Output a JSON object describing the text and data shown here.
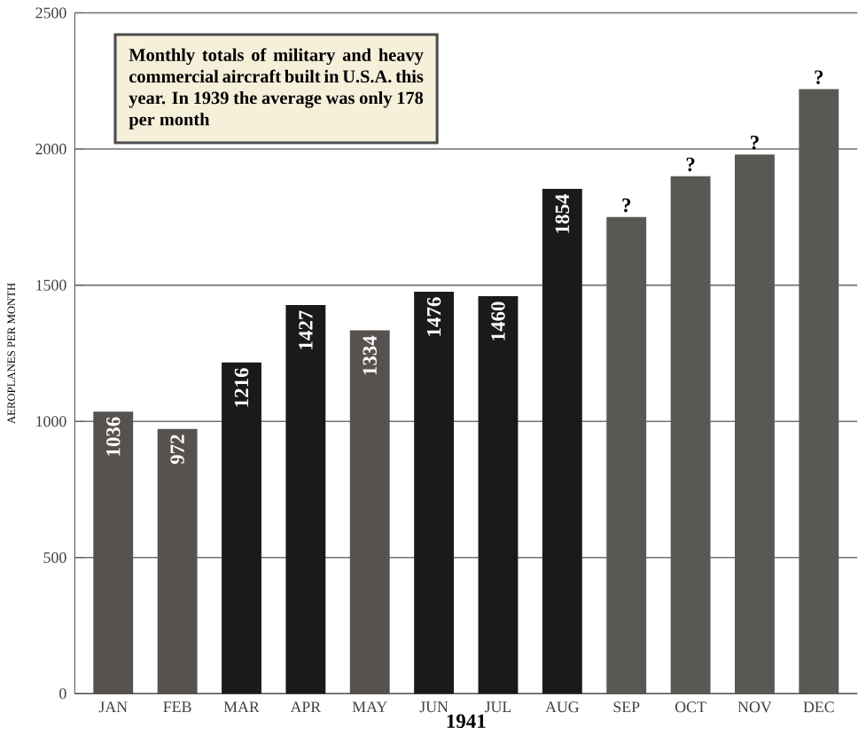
{
  "chart_data": {
    "type": "bar",
    "categories": [
      "JAN",
      "FEB",
      "MAR",
      "APR",
      "MAY",
      "JUN",
      "JUL",
      "AUG",
      "SEP",
      "OCT",
      "NOV",
      "DEC"
    ],
    "values": [
      1036,
      972,
      1216,
      1427,
      1334,
      1476,
      1460,
      1854,
      1750,
      1900,
      1980,
      2220
    ],
    "value_labels": [
      "1036",
      "972",
      "1216",
      "1427",
      "1334",
      "1476",
      "1460",
      "1854",
      "?",
      "?",
      "?",
      "?"
    ],
    "colors": [
      "#555250",
      "#555250",
      "#1a1a1a",
      "#1a1a1a",
      "#555250",
      "#1a1a1a",
      "#1a1a1a",
      "#1a1a1a",
      "#5a5855",
      "#5a5855",
      "#5a5855",
      "#5a5855"
    ],
    "xlabel": "1941",
    "ylabel": "AEROPLANES PER MONTH",
    "ylim": [
      0,
      2500
    ],
    "yticks": [
      0,
      500,
      1000,
      1500,
      2000,
      2500
    ],
    "grid": "y",
    "annotations": [
      "Monthly totals of military and heavy commercial aircraft built in U.S.A. this year. In 1939 the average was only 178 per month"
    ]
  }
}
